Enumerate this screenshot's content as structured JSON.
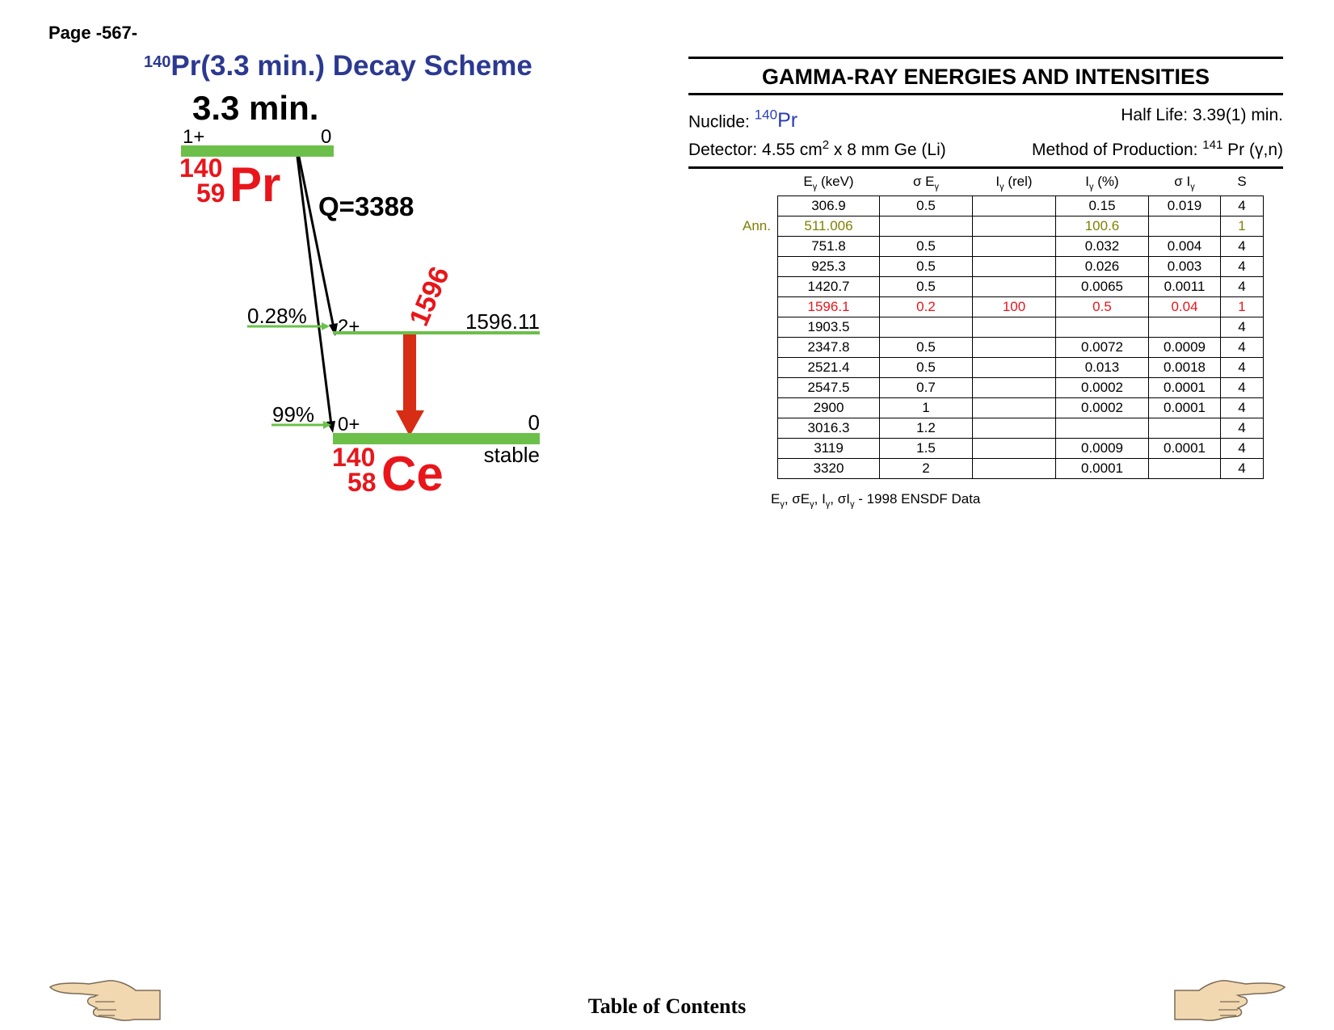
{
  "page_label": "Page -567-",
  "scheme_title": {
    "mass": "140",
    "text": "Pr(3.3 min.) Decay Scheme"
  },
  "scheme": {
    "half_life": "3.3 min.",
    "parent": {
      "mass": "140",
      "z": "59",
      "symbol": "Pr",
      "spin": "1+",
      "energy": "0"
    },
    "q_value": "Q=3388",
    "levels": [
      {
        "spin": "2+",
        "energy": "1596.11",
        "branch": "0.28%"
      },
      {
        "spin": "0+",
        "energy": "0",
        "branch": "99%"
      }
    ],
    "gamma_label": "1596",
    "daughter": {
      "mass": "140",
      "z": "58",
      "symbol": "Ce",
      "status": "stable"
    },
    "colors": {
      "level": "#6cc04a",
      "nuclide": "#e8161b",
      "arrow": "#d62d14",
      "title": "#2b3990"
    }
  },
  "gamma_panel": {
    "title": "GAMMA-RAY ENERGIES AND INTENSITIES",
    "nuclide_label": "Nuclide:",
    "nuclide_mass": "140",
    "nuclide_symbol": "Pr",
    "half_life": "Half Life: 3.39(1) min.",
    "detector_prefix": "Detector: 4.55 cm",
    "detector_exp": "2",
    "detector_suffix": " x 8 mm Ge (Li)",
    "production_prefix": "Method of Production: ",
    "production_mass": "141",
    "production_suffix": " Pr (γ,n)"
  },
  "table": {
    "headers": [
      {
        "main": "E",
        "sub": "γ",
        "rest": " (keV)"
      },
      {
        "main": "σ E",
        "sub": "γ",
        "rest": ""
      },
      {
        "main": "I",
        "sub": "γ",
        "rest": " (rel)"
      },
      {
        "main": "I",
        "sub": "γ",
        "rest": " (%)"
      },
      {
        "main": "σ I",
        "sub": "γ",
        "rest": ""
      },
      {
        "main": "S",
        "sub": "",
        "rest": ""
      }
    ],
    "rows": [
      {
        "label": "",
        "style": "",
        "cells": [
          "306.9",
          "0.5",
          "",
          "0.15",
          "0.019",
          "4"
        ]
      },
      {
        "label": "Ann.",
        "style": "olive",
        "cells": [
          "511.006",
          "",
          "",
          "100.6",
          "",
          "1"
        ]
      },
      {
        "label": "",
        "style": "",
        "cells": [
          "751.8",
          "0.5",
          "",
          "0.032",
          "0.004",
          "4"
        ]
      },
      {
        "label": "",
        "style": "",
        "cells": [
          "925.3",
          "0.5",
          "",
          "0.026",
          "0.003",
          "4"
        ]
      },
      {
        "label": "",
        "style": "",
        "cells": [
          "1420.7",
          "0.5",
          "",
          "0.0065",
          "0.0011",
          "4"
        ]
      },
      {
        "label": "",
        "style": "red",
        "cells": [
          "1596.1",
          "0.2",
          "100",
          "0.5",
          "0.04",
          "1"
        ]
      },
      {
        "label": "",
        "style": "",
        "cells": [
          "1903.5",
          "",
          "",
          "",
          "",
          "4"
        ]
      },
      {
        "label": "",
        "style": "",
        "cells": [
          "2347.8",
          "0.5",
          "",
          "0.0072",
          "0.0009",
          "4"
        ]
      },
      {
        "label": "",
        "style": "",
        "cells": [
          "2521.4",
          "0.5",
          "",
          "0.013",
          "0.0018",
          "4"
        ]
      },
      {
        "label": "",
        "style": "",
        "cells": [
          "2547.5",
          "0.7",
          "",
          "0.0002",
          "0.0001",
          "4"
        ]
      },
      {
        "label": "",
        "style": "",
        "cells": [
          "2900",
          "1",
          "",
          "0.0002",
          "0.0001",
          "4"
        ]
      },
      {
        "label": "",
        "style": "",
        "cells": [
          "3016.3",
          "1.2",
          "",
          "",
          "",
          "4"
        ]
      },
      {
        "label": "",
        "style": "",
        "cells": [
          "3119",
          "1.5",
          "",
          "0.0009",
          "0.0001",
          "4"
        ]
      },
      {
        "label": "",
        "style": "",
        "cells": [
          "3320",
          "2",
          "",
          "0.0001",
          "",
          "4"
        ]
      }
    ]
  },
  "footnote": {
    "source": "1998 ENSDF Data"
  },
  "nav": {
    "toc": "Table of Contents",
    "prev_icon": "pointing-hand-left-icon",
    "next_icon": "pointing-hand-right-icon"
  }
}
